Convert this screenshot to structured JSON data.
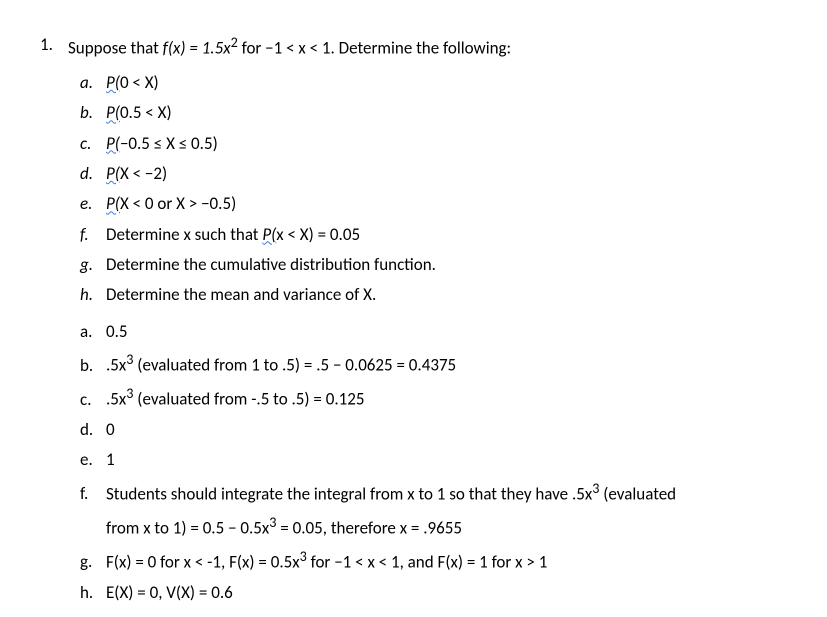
{
  "question": {
    "number": "1.",
    "text_before": "Suppose that ",
    "fx": "f(x) = 1.5x",
    "fx_sup": "2",
    "text_after": " for −1 < x < 1. Determine the following:"
  },
  "subs": [
    {
      "l": "a.",
      "s": "P(",
      "rest": "0 < X)"
    },
    {
      "l": "b.",
      "s": "P(",
      "rest": "0.5 < X)"
    },
    {
      "l": "c.",
      "s": "P(",
      "rest": "−0.5 ≤ X ≤ 0.5)"
    },
    {
      "l": "d.",
      "s": "P(",
      "rest": "X < −2)"
    },
    {
      "l": "e.",
      "s": "P(",
      "rest": "X < 0 or X > −0.5)"
    },
    {
      "l": "f.",
      "pre": "Determine x such that ",
      "s": "P(",
      "rest": "x < X) = 0.05"
    },
    {
      "l": "g.",
      "plain": "Determine the cumulative distribution function."
    },
    {
      "l": "h.",
      "plain": "Determine the mean and variance of X."
    }
  ],
  "answers": [
    {
      "l": "a.",
      "t": "0.5"
    },
    {
      "l": "b.",
      "pre": ".5x",
      "sup": "3",
      "post": " (evaluated from 1 to .5) = .5 − 0.0625 = 0.4375"
    },
    {
      "l": "c.",
      "pre": ".5x",
      "sup": "3",
      "post": " (evaluated from -.5 to .5) = 0.125"
    },
    {
      "l": "d.",
      "t": "0"
    },
    {
      "l": "e.",
      "t": "1"
    },
    {
      "l": "f.",
      "pre": "Students should integrate the integral from x to 1 so that they have .5x",
      "sup": "3",
      "post": " (evaluated",
      "cont_pre": "from x to 1) = 0.5 − 0.5x",
      "cont_sup": "3",
      "cont_post": " = 0.05, therefore x = .9655"
    },
    {
      "l": "g.",
      "pre": "F(x) = 0 for x < -1, F(x) = 0.5x",
      "sup": "3",
      "post": " for −1 < x < 1, and F(x) = 1 for x > 1"
    },
    {
      "l": "h.",
      "t": " E(X) = 0, V(X) = 0.6"
    }
  ]
}
